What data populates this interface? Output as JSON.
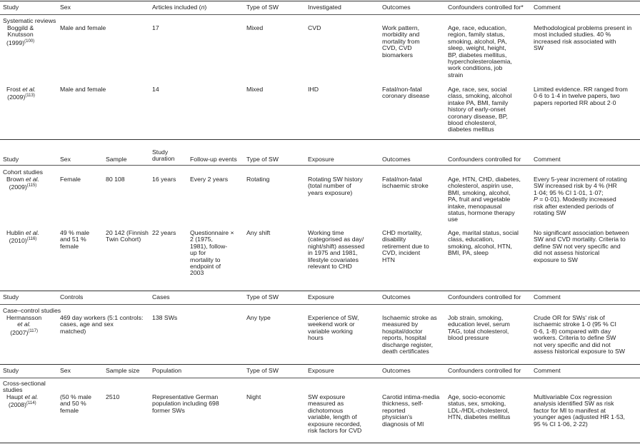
{
  "systematic": {
    "headers": [
      "Study",
      "Sex",
      "Articles included (n)",
      "Type of SW",
      "Investigated",
      "Outcomes",
      "Confounders controlled for*",
      "Comment"
    ],
    "section": "Systematic reviews",
    "rows": [
      {
        "study": "Boggild &\nKnutsson\n(1999)(100)",
        "sex": "Male and female",
        "n": "17",
        "sw": "Mixed",
        "investigated": "CVD",
        "outcomes": "Work pattern,\nmorbidity and\nmortality from\nCVD, CVD\nbiomarkers",
        "confounders": "Age, race, education,\nregion, family status,\nsmoking, alcohol, PA,\nsleep, weight, height,\nBP, diabetes mellitus,\nhypercholesterolaemia,\nwork conditions, job\nstrain",
        "comment": "Methodological problems present in\nmost included studies. 40 %\nincreased risk associated with\nSW"
      },
      {
        "study": "Frost et al.\n(2009)(113)",
        "sex": "Male and female",
        "n": "14",
        "sw": "Mixed",
        "investigated": "IHD",
        "outcomes": "Fatal/non-fatal\ncoronary disease",
        "confounders": "Age, race, sex, social\nclass, smoking, alcohol\nintake PA, BMI, family\nhistory of early-onset\ncoronary disease, BP,\nblood cholesterol,\ndiabetes mellitus",
        "comment": "Limited evidence. RR ranged from\n0·6 to 1·4 in twelve papers, two\npapers reported RR about 2·0"
      }
    ]
  },
  "cohort": {
    "headers": [
      "Study",
      "Sex",
      "Sample",
      "Study\nduration",
      "Follow-up events",
      "Type of SW",
      "Exposure",
      "Outcomes",
      "Confounders controlled for",
      "Comment"
    ],
    "section": "Cohort studies",
    "rows": [
      {
        "study": "Brown et al.\n(2009)(115)",
        "sex": "Female",
        "sample": "80 108",
        "duration": "16 years",
        "followup": "Every 2 years",
        "sw": "Rotating",
        "exposure": "Rotating SW history\n(total number of\nyears exposure)",
        "outcomes": "Fatal/non-fatal\nischaemic stroke",
        "confounders": "Age, HTN, CHD, diabetes,\ncholesterol, aspirin use,\nBMI, smoking, alcohol,\nPA, fruit and vegetable\nintake, menopausal\nstatus, hormone therapy\nuse",
        "comment": "Every 5-year increment of rotating\nSW increased risk by 4 % (HR\n1·04; 95 % CI 1·01, 1·07;\nP = 0·01). Modestly increased\nrisk after extended periods of\nrotating SW"
      },
      {
        "study": "Hublin et al.\n(2010)(116)",
        "sex": "49 % male\nand 51 %\nfemale",
        "sample": "20 142 (Finnish\nTwin Cohort)",
        "duration": "22 years",
        "followup": "Questionnaire ×\n2 (1975,\n1981), follow-\nup for\nmortality to\nendpoint of\n2003",
        "sw": "Any shift",
        "exposure": "Working time\n(categorised as day/\nnight/shift) assessed\nin 1975 and 1981,\nlifestyle covariates\nrelevant to CHD",
        "outcomes": "CHD mortality,\ndisability\nretirement due to\nCVD, incident\nHTN",
        "confounders": "Age, marital status, social\nclass, education,\nsmoking, alcohol, HTN,\nBMI, PA, sleep",
        "comment": "No significant association between\nSW and CVD mortality. Criteria to\ndefine SW not very specific and\ndid not assess historical\nexposure to SW"
      }
    ]
  },
  "casecontrol": {
    "headers": [
      "Study",
      "Controls",
      "Cases",
      "Type of SW",
      "Exposure",
      "Outcomes",
      "Confounders controlled for",
      "Comment"
    ],
    "section": "Case–control studies",
    "rows": [
      {
        "study": "Hermansson\net al.\n(2007)(117)",
        "controls": "469 day workers (5:1 controls:\ncases, age and sex\nmatched)",
        "cases": "138 SWs",
        "sw": "Any type",
        "exposure": "Experience of SW,\nweekend work or\nvariable working\nhours",
        "outcomes": "Ischaemic stroke as\nmeasured by\nhospital/doctor\nreports, hospital\ndischarge register,\ndeath certificates",
        "confounders": "Job strain, smoking,\neducation level, serum\nTAG, total cholesterol,\nblood pressure",
        "comment": "Crude OR for SWs' risk of\nischaemic stroke 1·0 (95 % CI\n0·6, 1·8) compared with day\nworkers. Criteria to define SW\nnot very specific and did not\nassess historical exposure to SW"
      }
    ]
  },
  "crosssectional": {
    "headers": [
      "Study",
      "Sex",
      "Sample size",
      "Population",
      "Type of SW",
      "Exposure",
      "Outcomes",
      "Confounders controlled for",
      "Comment"
    ],
    "section": "Cross-sectional\nstudies",
    "rows": [
      {
        "study": "Haupt et al.\n(2008)(114)",
        "sex": "(50 % male\nand 50 %\nfemale",
        "samplesize": "2510",
        "population": "Representative German\npopulation including 698\nformer SWs",
        "sw": "Night",
        "exposure": "SW exposure\nmeasured as\ndichotomous\nvariable, length of\nexposure recorded,\nrisk factors for CVD",
        "outcomes": "Carotid intima-media\nthickness, self-\nreported\nphysician's\ndiagnosis of MI",
        "confounders": "Age, socio-economic\nstatus, sex, smoking,\nLDL-/HDL-cholesterol,\nHTN, diabetes mellitus",
        "comment": "Multivariable Cox regression\nanalysis identified SW as risk\nfactor for MI to manifest at\nyounger ages (adjusted HR 1·53,\n95 % CI 1·06, 2·22)"
      }
    ]
  }
}
